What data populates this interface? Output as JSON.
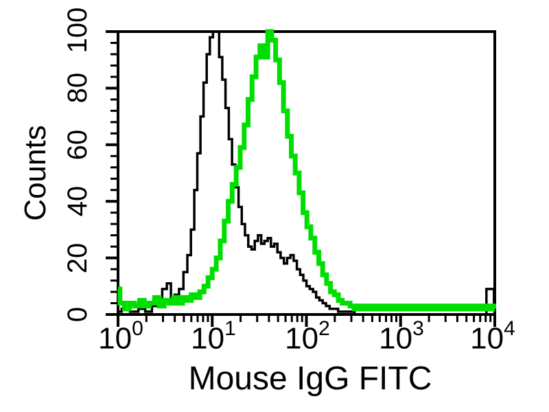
{
  "figure": {
    "xlabel": "Mouse IgG FITC",
    "ylabel": "Counts",
    "background_color": "#ffffff",
    "border_color": "#000000"
  },
  "axes": {
    "x": {
      "scale": "log",
      "min": 1,
      "max": 10000,
      "ticks": [
        {
          "base": "10",
          "exp": "0"
        },
        {
          "base": "10",
          "exp": "1"
        },
        {
          "base": "10",
          "exp": "2"
        },
        {
          "base": "10",
          "exp": "3"
        },
        {
          "base": "10",
          "exp": "4"
        }
      ]
    },
    "y": {
      "min": 0,
      "max": 100,
      "tick_labels": [
        "0",
        "20",
        "40",
        "60",
        "80",
        "100"
      ],
      "major_step": 20,
      "minor_step": 4
    }
  },
  "chart_data": {
    "type": "line",
    "subtype": "step-histogram-overlay",
    "title": "",
    "xlabel": "Mouse IgG FITC",
    "ylabel": "Counts",
    "x_scale": "log",
    "xlim": [
      1,
      10000
    ],
    "ylim": [
      0,
      100
    ],
    "grid": false,
    "legend": "none",
    "series": [
      {
        "name": "black-histogram",
        "color": "#000000",
        "width": 3.5,
        "points": [
          [
            1,
            1
          ],
          [
            1.2,
            2
          ],
          [
            1.5,
            1
          ],
          [
            1.8,
            2
          ],
          [
            2.1,
            1
          ],
          [
            2.5,
            3
          ],
          [
            2.8,
            5
          ],
          [
            3.1,
            9
          ],
          [
            3.5,
            11
          ],
          [
            3.8,
            6
          ],
          [
            4.2,
            7
          ],
          [
            4.7,
            9
          ],
          [
            5.2,
            15
          ],
          [
            5.7,
            21
          ],
          [
            6.2,
            30
          ],
          [
            6.7,
            44
          ],
          [
            7.2,
            57
          ],
          [
            7.8,
            70
          ],
          [
            8.4,
            82
          ],
          [
            9.1,
            92
          ],
          [
            9.8,
            98
          ],
          [
            10.6,
            100
          ],
          [
            11.4,
            100
          ],
          [
            12.3,
            91
          ],
          [
            13.3,
            83
          ],
          [
            14.4,
            73
          ],
          [
            15.6,
            62
          ],
          [
            16.9,
            53
          ],
          [
            18.3,
            45
          ],
          [
            19.8,
            38
          ],
          [
            21.4,
            32
          ],
          [
            23.2,
            28
          ],
          [
            25.1,
            24
          ],
          [
            27.2,
            23
          ],
          [
            29.4,
            26
          ],
          [
            31.8,
            28
          ],
          [
            34.4,
            25
          ],
          [
            37.3,
            26
          ],
          [
            40.4,
            27
          ],
          [
            43.7,
            24
          ],
          [
            47.3,
            25
          ],
          [
            51.2,
            22
          ],
          [
            55.4,
            20
          ],
          [
            60,
            18
          ],
          [
            65,
            20
          ],
          [
            70.3,
            21
          ],
          [
            76.1,
            19
          ],
          [
            82.4,
            16
          ],
          [
            89.2,
            14
          ],
          [
            96.5,
            12
          ],
          [
            104,
            10
          ],
          [
            113,
            9
          ],
          [
            122,
            8
          ],
          [
            132,
            6
          ],
          [
            143,
            5
          ],
          [
            155,
            4
          ],
          [
            168,
            3
          ],
          [
            185,
            2
          ],
          [
            205,
            2
          ],
          [
            230,
            1
          ],
          [
            260,
            1
          ],
          [
            300,
            1
          ],
          [
            350,
            0
          ],
          [
            450,
            0
          ],
          [
            700,
            0
          ],
          [
            1500,
            0
          ],
          [
            3000,
            0
          ],
          [
            6000,
            0
          ],
          [
            8000,
            0
          ],
          [
            8300,
            9
          ],
          [
            9600,
            9
          ],
          [
            10000,
            2
          ]
        ]
      },
      {
        "name": "green-histogram",
        "color": "#00dd00",
        "width": 7,
        "points": [
          [
            1,
            9
          ],
          [
            1.1,
            4
          ],
          [
            1.25,
            2
          ],
          [
            1.4,
            4
          ],
          [
            1.6,
            3
          ],
          [
            1.8,
            5
          ],
          [
            2,
            3
          ],
          [
            2.3,
            4
          ],
          [
            2.6,
            6
          ],
          [
            2.9,
            3
          ],
          [
            3.3,
            5
          ],
          [
            3.7,
            4
          ],
          [
            4.1,
            6
          ],
          [
            4.6,
            4
          ],
          [
            5.1,
            6
          ],
          [
            5.7,
            5
          ],
          [
            6.3,
            7
          ],
          [
            7,
            6
          ],
          [
            7.8,
            8
          ],
          [
            8.6,
            10
          ],
          [
            9.5,
            13
          ],
          [
            10.5,
            16
          ],
          [
            11.6,
            20
          ],
          [
            12.8,
            26
          ],
          [
            14.1,
            33
          ],
          [
            15.5,
            40
          ],
          [
            17.1,
            46
          ],
          [
            18.9,
            52
          ],
          [
            20.8,
            59
          ],
          [
            22.9,
            67
          ],
          [
            25.2,
            76
          ],
          [
            27.8,
            84
          ],
          [
            30.6,
            91
          ],
          [
            33.7,
            95
          ],
          [
            37.1,
            91
          ],
          [
            40.8,
            100
          ],
          [
            44.9,
            97
          ],
          [
            49.4,
            90
          ],
          [
            54.4,
            82
          ],
          [
            59.9,
            72
          ],
          [
            65.9,
            63
          ],
          [
            72.5,
            56
          ],
          [
            79.8,
            50
          ],
          [
            87.8,
            43
          ],
          [
            96.6,
            36
          ],
          [
            106,
            31
          ],
          [
            117,
            27
          ],
          [
            129,
            22
          ],
          [
            142,
            18
          ],
          [
            156,
            14
          ],
          [
            172,
            11
          ],
          [
            189,
            8
          ],
          [
            208,
            7
          ],
          [
            229,
            5
          ],
          [
            252,
            4
          ],
          [
            277,
            4
          ],
          [
            305,
            3
          ],
          [
            336,
            2
          ],
          [
            370,
            3
          ],
          [
            407,
            2
          ],
          [
            448,
            3
          ],
          [
            493,
            2
          ],
          [
            542,
            3
          ],
          [
            596,
            2
          ],
          [
            656,
            3
          ],
          [
            722,
            2
          ],
          [
            794,
            3
          ],
          [
            874,
            2
          ],
          [
            961,
            3
          ],
          [
            1060,
            2
          ],
          [
            1160,
            3
          ],
          [
            1280,
            2
          ],
          [
            1410,
            3
          ],
          [
            1550,
            2
          ],
          [
            1710,
            3
          ],
          [
            1880,
            2
          ],
          [
            2070,
            3
          ],
          [
            2270,
            2
          ],
          [
            2500,
            3
          ],
          [
            2750,
            2
          ],
          [
            3030,
            3
          ],
          [
            3330,
            2
          ],
          [
            3660,
            3
          ],
          [
            4030,
            2
          ],
          [
            4430,
            3
          ],
          [
            4870,
            2
          ],
          [
            5360,
            3
          ],
          [
            5900,
            2
          ],
          [
            6490,
            3
          ],
          [
            7140,
            2
          ],
          [
            7850,
            3
          ],
          [
            8640,
            2
          ],
          [
            9500,
            3
          ],
          [
            10000,
            2
          ]
        ]
      }
    ]
  }
}
